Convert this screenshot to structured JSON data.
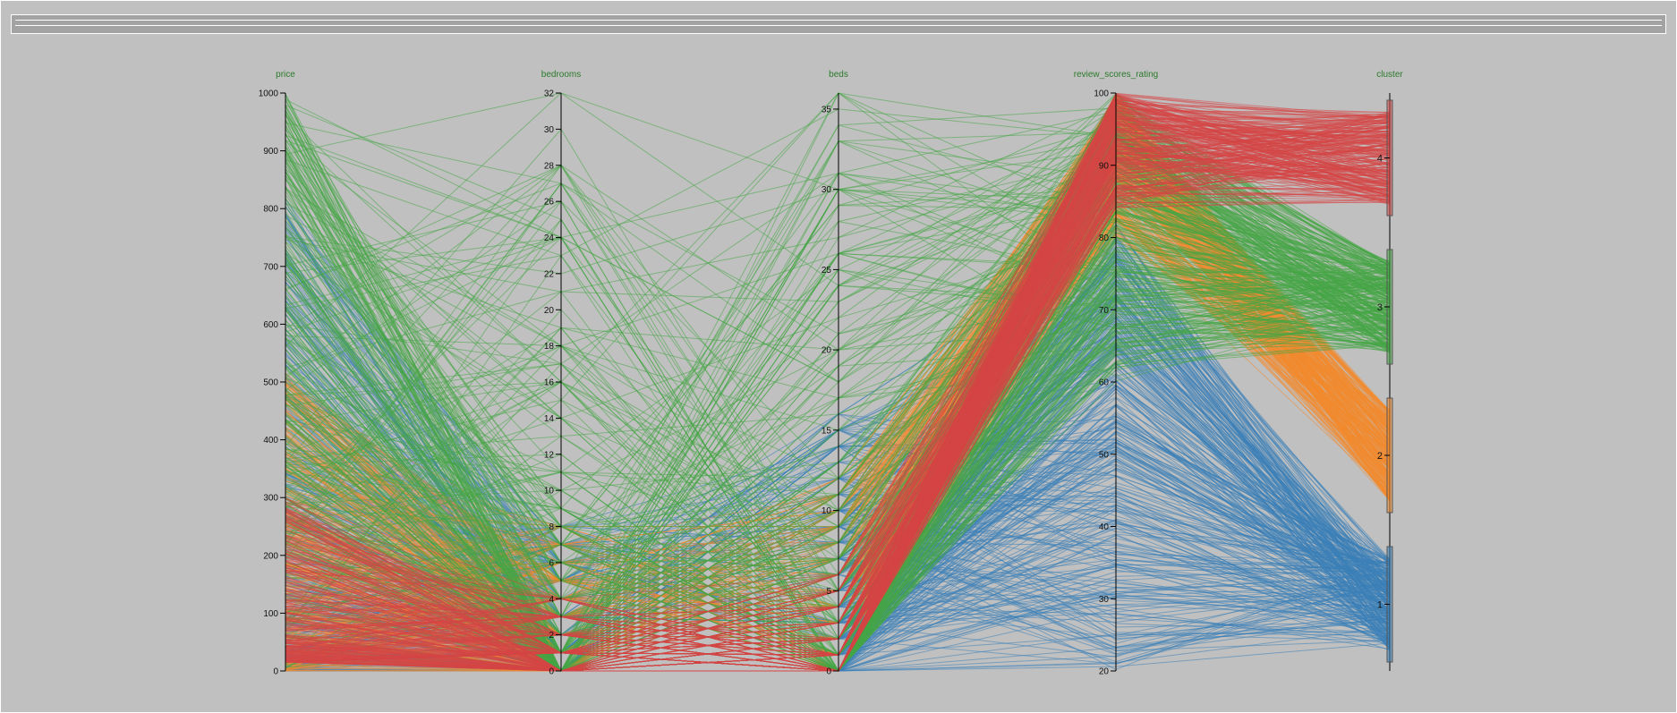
{
  "chart_data": {
    "type": "parallel-coordinates",
    "dimensions": [
      {
        "name": "price",
        "min": 0,
        "max": 1000,
        "ticks": [
          0,
          100,
          200,
          300,
          400,
          500,
          600,
          700,
          800,
          900,
          1000
        ]
      },
      {
        "name": "bedrooms",
        "min": 0,
        "max": 32,
        "ticks": [
          0,
          2,
          4,
          6,
          8,
          10,
          12,
          14,
          16,
          18,
          20,
          22,
          24,
          26,
          28,
          30,
          32
        ]
      },
      {
        "name": "beds",
        "min": 0,
        "max": 36,
        "ticks": [
          0,
          5,
          10,
          15,
          20,
          25,
          30,
          35
        ]
      },
      {
        "name": "review_scores_rating",
        "min": 20,
        "max": 100,
        "ticks": [
          20,
          30,
          40,
          50,
          60,
          70,
          80,
          90,
          100
        ]
      },
      {
        "name": "cluster",
        "categories": [
          "4",
          "3",
          "2",
          "1"
        ]
      }
    ],
    "clusters": [
      {
        "label": "1",
        "color": "#3a80b8",
        "price": [
          0,
          820
        ],
        "bedrooms": [
          0,
          8
        ],
        "beds": [
          0,
          16
        ],
        "review_scores_rating": [
          20,
          82
        ]
      },
      {
        "label": "2",
        "color": "#f28a2e",
        "price": [
          0,
          520
        ],
        "bedrooms": [
          0,
          8
        ],
        "beds": [
          0,
          12
        ],
        "review_scores_rating": [
          80,
          100
        ]
      },
      {
        "label": "3",
        "color": "#46a646",
        "price": [
          0,
          1000
        ],
        "bedrooms": [
          0,
          32
        ],
        "beds": [
          0,
          36
        ],
        "review_scores_rating": [
          60,
          100
        ]
      },
      {
        "label": "4",
        "color": "#d64545",
        "price": [
          15,
          300
        ],
        "bedrooms": [
          0,
          4
        ],
        "beds": [
          0,
          6
        ],
        "review_scores_rating": [
          84,
          100
        ]
      }
    ]
  }
}
